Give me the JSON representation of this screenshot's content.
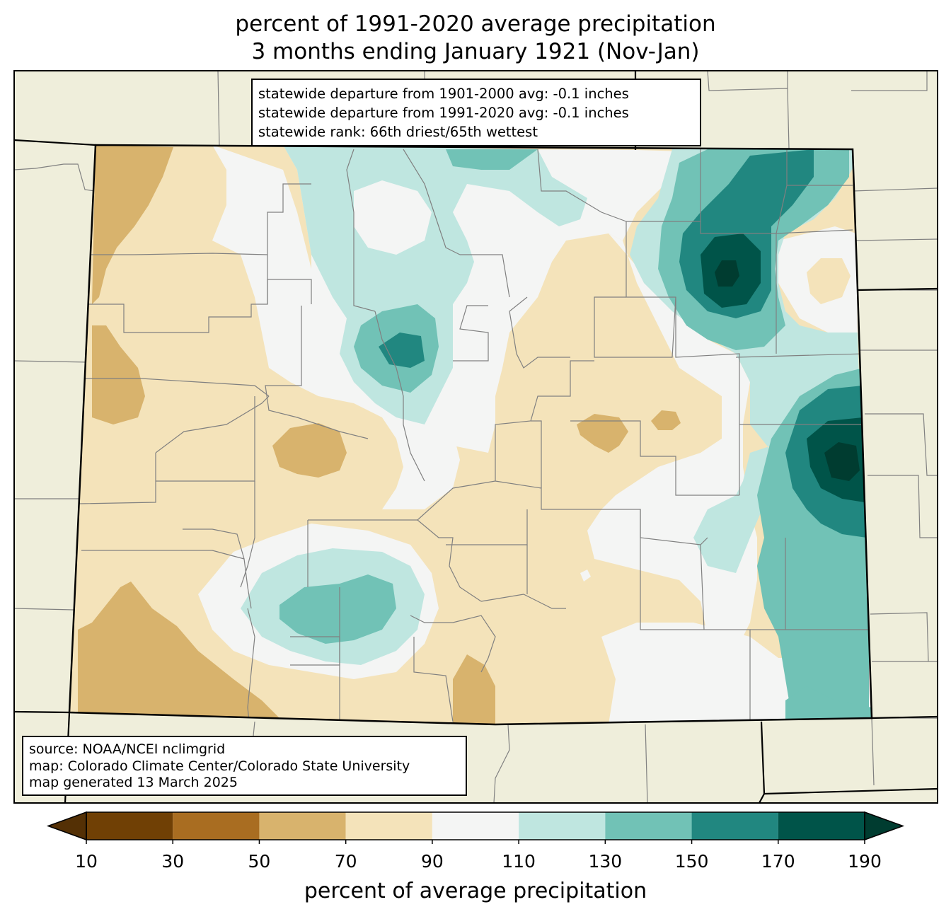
{
  "title": {
    "line1": "percent of 1991-2020 average precipitation",
    "line2": "3 months ending January 1921 (Nov-Jan)"
  },
  "stats": {
    "line1": "statewide departure from 1901-2000 avg: -0.1 inches",
    "line2": "statewide departure from 1991-2020 avg: -0.1 inches",
    "line3": "statewide rank: 66th driest/65th wettest"
  },
  "source": {
    "line1": "source: NOAA/NCEI nclimgrid",
    "line2": "map: Colorado Climate Center/Colorado State University",
    "line3": "map generated 13 March 2025"
  },
  "colorbar": {
    "label": "percent of average precipitation",
    "ticks": [
      "10",
      "30",
      "50",
      "70",
      "90",
      "110",
      "130",
      "150",
      "170",
      "190"
    ],
    "under_color": "#543005",
    "over_color": "#003c30",
    "bins": [
      {
        "from": 10,
        "to": 30,
        "color": "#704005"
      },
      {
        "from": 30,
        "to": 50,
        "color": "#a96d21"
      },
      {
        "from": 50,
        "to": 70,
        "color": "#d8b36d"
      },
      {
        "from": 70,
        "to": 90,
        "color": "#f4e3ba"
      },
      {
        "from": 90,
        "to": 110,
        "color": "#f4f5f4"
      },
      {
        "from": 110,
        "to": 130,
        "color": "#bfe6e0"
      },
      {
        "from": 130,
        "to": 150,
        "color": "#71c2b6"
      },
      {
        "from": 150,
        "to": 170,
        "color": "#218780"
      },
      {
        "from": 170,
        "to": 190,
        "color": "#005449"
      }
    ]
  },
  "colors": {
    "land_background": "#efeedb",
    "state_border": "#000000",
    "county_lines": "#808080"
  }
}
